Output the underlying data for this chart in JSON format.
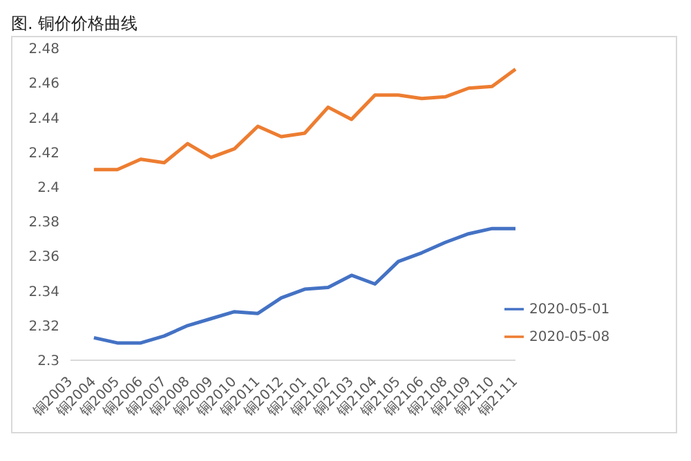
{
  "chart_data": {
    "type": "line",
    "title": "图. 铜价价格曲线",
    "categories": [
      "铜2003",
      "铜2004",
      "铜2005",
      "铜2006",
      "铜2007",
      "铜2008",
      "铜2009",
      "铜2010",
      "铜2011",
      "铜2012",
      "铜2101",
      "铜2102",
      "铜2103",
      "铜2104",
      "铜2105",
      "铜2106",
      "铜2108",
      "铜2109",
      "铜2110",
      "铜2111"
    ],
    "series": [
      {
        "name": "2020-05-01",
        "color": "#4472c4",
        "values": [
          null,
          2.313,
          2.31,
          2.31,
          2.314,
          2.32,
          2.324,
          2.328,
          2.327,
          2.336,
          2.341,
          2.342,
          2.349,
          2.344,
          2.357,
          2.362,
          2.368,
          2.373,
          2.376,
          2.376
        ]
      },
      {
        "name": "2020-05-08",
        "color": "#ed7d31",
        "values": [
          null,
          2.41,
          2.41,
          2.416,
          2.414,
          2.425,
          2.417,
          2.422,
          2.435,
          2.429,
          2.431,
          2.446,
          2.439,
          2.453,
          2.453,
          2.451,
          2.452,
          2.457,
          2.458,
          2.468
        ]
      }
    ],
    "ylim": [
      2.3,
      2.48
    ],
    "yticks": [
      2.3,
      2.32,
      2.34,
      2.36,
      2.38,
      2.4,
      2.42,
      2.44,
      2.46,
      2.48
    ],
    "grid": false,
    "legend": "bottom right",
    "marker": "none",
    "line_style": "solid"
  }
}
